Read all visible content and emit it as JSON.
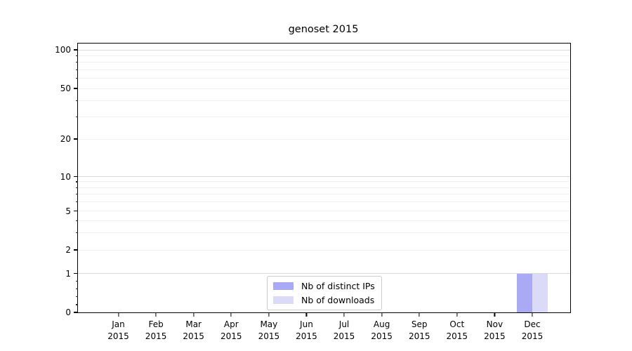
{
  "chart_data": {
    "type": "bar",
    "title": "genoset 2015",
    "categories": [
      "Jan",
      "Feb",
      "Mar",
      "Apr",
      "May",
      "Jun",
      "Jul",
      "Aug",
      "Sep",
      "Oct",
      "Nov",
      "Dec"
    ],
    "year": "2015",
    "series": [
      {
        "name": "Nb of distinct IPs",
        "color": "#a9a9f6",
        "values": [
          0,
          0,
          0,
          0,
          0,
          0,
          0,
          0,
          0,
          0,
          0,
          1
        ]
      },
      {
        "name": "Nb of downloads",
        "color": "#dbdbf8",
        "values": [
          0,
          0,
          0,
          0,
          0,
          0,
          0,
          0,
          0,
          0,
          0,
          1
        ]
      }
    ],
    "yscale": "symlog",
    "ylim": [
      0,
      115
    ],
    "yticks": [
      0,
      1,
      2,
      5,
      10,
      20,
      50,
      100
    ],
    "grid": true,
    "legend_position": "bottom-center-inside",
    "colors": {
      "major_grid": "#d9d9d9",
      "minor_grid": "#f2f2f2",
      "axis": "#000000",
      "legend_border": "#cccccc"
    }
  }
}
